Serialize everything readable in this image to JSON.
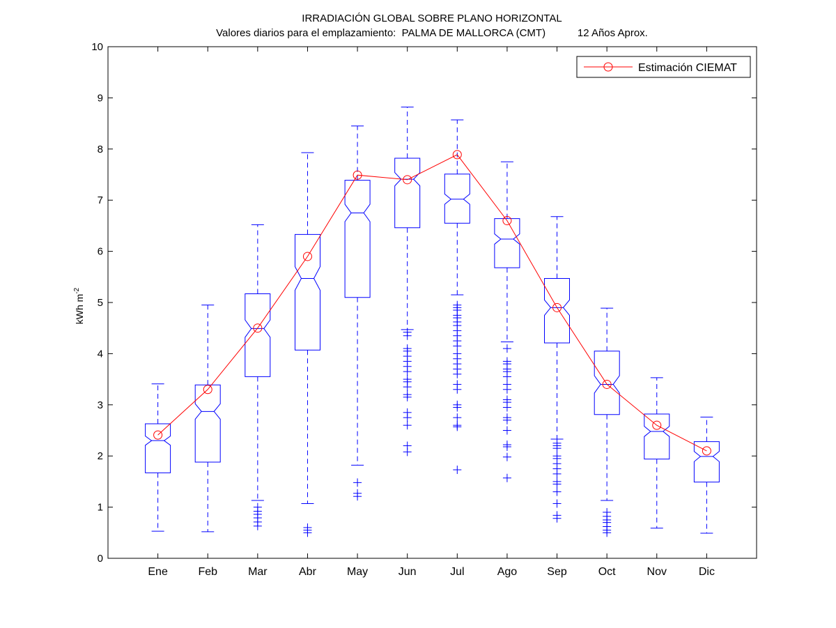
{
  "chart_data": {
    "type": "box",
    "title": "IRRADIACIÓN GLOBAL SOBRE PLANO HORIZONTAL",
    "subtitle": "Valores diarios para el emplazamiento:  PALMA DE MALLORCA (CMT)           12 Años Aprox.",
    "xlabel": "",
    "ylabel": "kWh m",
    "ylabel_superscript": "-2",
    "ylim": [
      0,
      10
    ],
    "yticks": [
      0,
      1,
      2,
      3,
      4,
      5,
      6,
      7,
      8,
      9,
      10
    ],
    "categories": [
      "Ene",
      "Feb",
      "Mar",
      "Abr",
      "May",
      "Jun",
      "Jul",
      "Ago",
      "Sep",
      "Oct",
      "Nov",
      "Dic"
    ],
    "boxes": [
      {
        "lw": 0.53,
        "q1": 1.67,
        "med": 2.3,
        "q3": 2.63,
        "uw": 3.41,
        "nlo": 2.21,
        "nhi": 2.39,
        "outliers": []
      },
      {
        "lw": 0.52,
        "q1": 1.88,
        "med": 2.87,
        "q3": 3.39,
        "uw": 4.95,
        "nlo": 2.72,
        "nhi": 3.02,
        "outliers": []
      },
      {
        "lw": 1.13,
        "q1": 3.55,
        "med": 4.49,
        "q3": 5.17,
        "uw": 6.52,
        "nlo": 4.32,
        "nhi": 4.66,
        "outliers": [
          1.0,
          0.92,
          0.86,
          0.79,
          0.71,
          0.63
        ]
      },
      {
        "lw": 1.07,
        "q1": 4.07,
        "med": 5.47,
        "q3": 6.33,
        "uw": 7.93,
        "nlo": 5.24,
        "nhi": 5.7,
        "outliers": [
          0.6,
          0.55,
          0.5
        ]
      },
      {
        "lw": 1.82,
        "q1": 5.1,
        "med": 6.75,
        "q3": 7.39,
        "uw": 8.45,
        "nlo": 6.58,
        "nhi": 6.92,
        "outliers": [
          1.48,
          1.27,
          1.21
        ]
      },
      {
        "lw": 4.47,
        "q1": 6.46,
        "med": 7.41,
        "q3": 7.82,
        "uw": 8.82,
        "nlo": 7.28,
        "nhi": 7.54,
        "outliers": [
          4.42,
          4.35,
          4.1,
          4.05,
          3.95,
          3.85,
          3.75,
          3.65,
          3.5,
          3.45,
          3.35,
          3.2,
          3.15,
          2.85,
          2.75,
          2.6,
          2.2,
          2.08
        ]
      },
      {
        "lw": 5.15,
        "q1": 6.55,
        "med": 7.02,
        "q3": 7.51,
        "uw": 8.57,
        "nlo": 6.92,
        "nhi": 7.12,
        "outliers": [
          4.95,
          4.9,
          4.85,
          4.75,
          4.7,
          4.62,
          4.55,
          4.45,
          4.35,
          4.25,
          4.15,
          4.0,
          3.9,
          3.8,
          3.7,
          3.6,
          3.4,
          3.3,
          3.0,
          2.95,
          2.75,
          2.6,
          2.57,
          1.73
        ]
      },
      {
        "lw": 4.23,
        "q1": 5.68,
        "med": 6.24,
        "q3": 6.64,
        "uw": 7.75,
        "nlo": 6.14,
        "nhi": 6.34,
        "outliers": [
          4.1,
          3.85,
          3.8,
          3.7,
          3.65,
          3.55,
          3.4,
          3.3,
          3.1,
          3.05,
          2.95,
          2.75,
          2.7,
          2.5,
          2.22,
          2.18,
          1.98,
          1.57
        ]
      },
      {
        "lw": 2.33,
        "q1": 4.21,
        "med": 4.9,
        "q3": 5.47,
        "uw": 6.68,
        "nlo": 4.75,
        "nhi": 5.05,
        "outliers": [
          2.25,
          2.2,
          2.15,
          2.0,
          1.95,
          1.85,
          1.75,
          1.65,
          1.5,
          1.45,
          1.3,
          1.07,
          0.84,
          0.78
        ]
      },
      {
        "lw": 1.13,
        "q1": 2.81,
        "med": 3.4,
        "q3": 4.05,
        "uw": 4.89,
        "nlo": 3.23,
        "nhi": 3.57,
        "outliers": [
          0.9,
          0.82,
          0.75,
          0.7,
          0.62,
          0.55,
          0.5
        ]
      },
      {
        "lw": 0.59,
        "q1": 1.94,
        "med": 2.48,
        "q3": 2.82,
        "uw": 3.53,
        "nlo": 2.38,
        "nhi": 2.58,
        "outliers": []
      },
      {
        "lw": 0.49,
        "q1": 1.49,
        "med": 1.99,
        "q3": 2.28,
        "uw": 2.76,
        "nlo": 1.89,
        "nhi": 2.09,
        "outliers": []
      }
    ],
    "series": [
      {
        "name": "Estimación CIEMAT",
        "values": [
          2.41,
          3.3,
          4.5,
          5.9,
          7.49,
          7.4,
          7.89,
          6.6,
          4.9,
          3.4,
          2.6,
          2.1
        ]
      }
    ],
    "legend_position": "top-right",
    "grid": false,
    "colors": {
      "box": "#0000ff",
      "series": "#ff0000",
      "axes": "#000000"
    }
  }
}
